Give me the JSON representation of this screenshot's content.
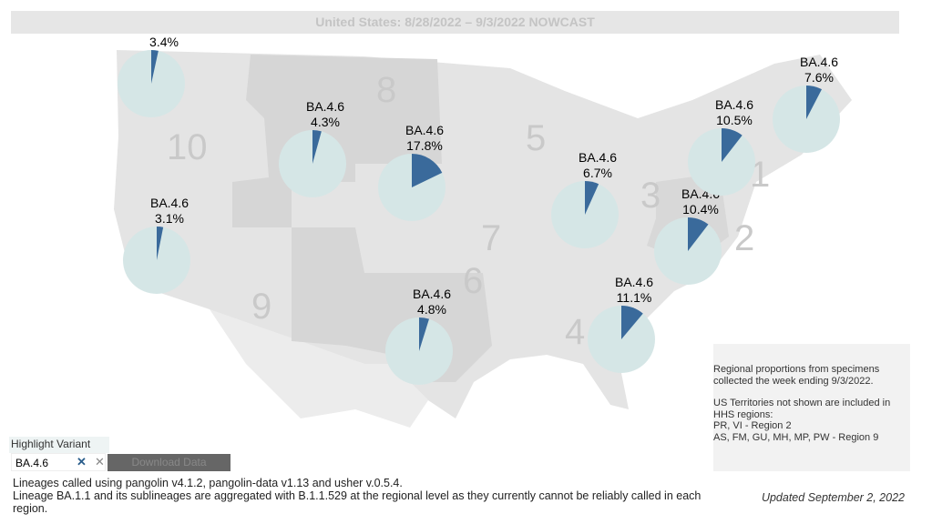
{
  "title": "United States: 8/28/2022 – 9/3/2022 NOWCAST",
  "colors": {
    "pie_base": "#d5e6e6",
    "pie_highlight": "#3a6a9b",
    "map": "#e3e3e3"
  },
  "regions": [
    {
      "region": "10",
      "variant": "BA.4.6",
      "percent_label": "3.4%",
      "share": 3.4
    },
    {
      "region": "8",
      "variant": "BA.4.6",
      "percent_label": "4.3%",
      "share": 4.3
    },
    {
      "region": "7",
      "variant": "BA.4.6",
      "percent_label": "17.8%",
      "share": 17.8
    },
    {
      "region": "9",
      "variant": "BA.4.6",
      "percent_label": "3.1%",
      "share": 3.1
    },
    {
      "region": "6",
      "variant": "BA.4.6",
      "percent_label": "4.8%",
      "share": 4.8
    },
    {
      "region": "5",
      "variant": "BA.4.6",
      "percent_label": "6.7%",
      "share": 6.7
    },
    {
      "region": "4",
      "variant": "BA.4.6",
      "percent_label": "11.1%",
      "share": 11.1
    },
    {
      "region": "3",
      "variant": "BA.4.6",
      "percent_label": "10.4%",
      "share": 10.4
    },
    {
      "region": "2",
      "variant": "BA.4.6",
      "percent_label": "10.5%",
      "share": 10.5
    },
    {
      "region": "1",
      "variant": "BA.4.6",
      "percent_label": "7.6%",
      "share": 7.6
    }
  ],
  "controls": {
    "highlight_label": "Highlight Variant",
    "highlight_value": "BA.4.6",
    "download_label": "Download Data"
  },
  "footer": {
    "line1": "Lineages called using pangolin v4.1.2, pangolin-data v1.13 and usher v.0.5.4.",
    "line2": "Lineage BA.1.1 and its sublineages are aggregated with B.1.1.529 at the regional level as they currently cannot be reliably called in each region."
  },
  "note": {
    "line1": "Regional proportions from specimens",
    "line2": "collected the week ending 9/3/2022.",
    "line3": "US Territories not shown are included in",
    "line4": "HHS regions:",
    "line5": "PR, VI - Region 2",
    "line6": "AS, FM, GU, MH, MP, PW - Region 9"
  },
  "updated": "Updated September 2, 2022"
}
